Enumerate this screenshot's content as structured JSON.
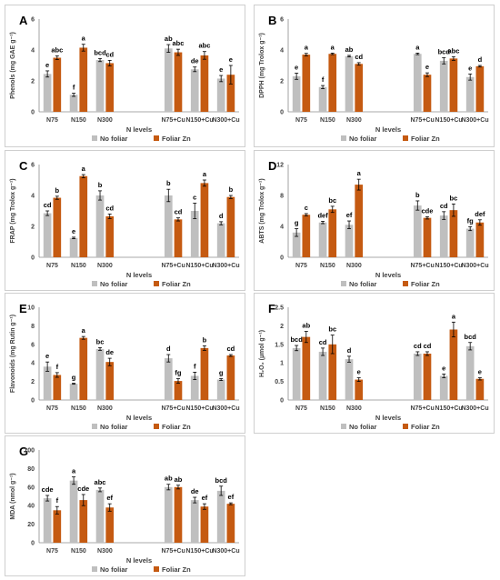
{
  "colors": {
    "no_foliar": "#bfbfbf",
    "foliar_zn": "#c55a11",
    "axis": "#8c8c8c",
    "text": "#404040"
  },
  "chart_data": [
    {
      "type": "bar",
      "panel": "A",
      "ylabel": "Phenols (mg GAE g⁻¹)",
      "xlabel": "N levels",
      "ylim": [
        0,
        6
      ],
      "yticks": [
        0,
        2,
        4,
        6
      ],
      "categories": [
        "N75",
        "N150",
        "N300",
        "N75+Cu",
        "N150+Cu",
        "N300+Cu"
      ],
      "series": [
        {
          "name": "No foliar",
          "values": [
            2.45,
            1.1,
            3.35,
            4.1,
            2.75,
            2.15
          ],
          "errors": [
            0.2,
            0.1,
            0.1,
            0.25,
            0.15,
            0.2
          ],
          "letters": [
            "e",
            "f",
            "bcd",
            "ab",
            "de",
            "e"
          ]
        },
        {
          "name": "Foliar Zn",
          "values": [
            3.5,
            4.15,
            3.15,
            3.85,
            3.65,
            2.4
          ],
          "errors": [
            0.12,
            0.22,
            0.18,
            0.2,
            0.25,
            0.6
          ],
          "letters": [
            "abc",
            "a",
            "cd",
            "abc",
            "abc",
            "e"
          ]
        }
      ],
      "legend": "bottom"
    },
    {
      "type": "bar",
      "panel": "B",
      "ylabel": "DPPH (mg Trolox g⁻¹)",
      "xlabel": "N levels",
      "ylim": [
        0,
        6
      ],
      "yticks": [
        0,
        2,
        4,
        6
      ],
      "categories": [
        "N75",
        "N150",
        "N300",
        "N75+Cu",
        "N150+Cu",
        "N300+Cu"
      ],
      "series": [
        {
          "name": "No foliar",
          "values": [
            2.3,
            1.6,
            3.6,
            3.75,
            3.3,
            2.25
          ],
          "errors": [
            0.2,
            0.1,
            0.05,
            0.05,
            0.2,
            0.2
          ],
          "letters": [
            "e",
            "f",
            "ab",
            "a",
            "bcd",
            "e"
          ]
        },
        {
          "name": "Foliar Zn",
          "values": [
            3.7,
            3.75,
            3.1,
            2.4,
            3.45,
            2.95
          ],
          "errors": [
            0.08,
            0.05,
            0.08,
            0.12,
            0.12,
            0.05
          ],
          "letters": [
            "a",
            "a",
            "cd",
            "e",
            "abc",
            "d"
          ]
        }
      ],
      "legend": "bottom"
    },
    {
      "type": "bar",
      "panel": "C",
      "ylabel": "FRAP (mg Trolox g⁻¹)",
      "xlabel": "N levels",
      "ylim": [
        0,
        6
      ],
      "yticks": [
        0,
        2,
        4,
        6
      ],
      "categories": [
        "N75",
        "N150",
        "N300",
        "N75+Cu",
        "N150+Cu",
        "N300+Cu"
      ],
      "series": [
        {
          "name": "No foliar",
          "values": [
            2.85,
            1.25,
            4.0,
            4.0,
            3.0,
            2.2
          ],
          "errors": [
            0.15,
            0.05,
            0.3,
            0.4,
            0.5,
            0.1
          ],
          "letters": [
            "cd",
            "e",
            "b",
            "b",
            "c",
            "d"
          ]
        },
        {
          "name": "Foliar Zn",
          "values": [
            3.85,
            5.25,
            2.65,
            2.45,
            4.8,
            3.9
          ],
          "errors": [
            0.1,
            0.1,
            0.15,
            0.1,
            0.2,
            0.1
          ],
          "letters": [
            "b",
            "a",
            "cd",
            "cd",
            "a",
            "b"
          ]
        }
      ],
      "legend": "bottom"
    },
    {
      "type": "bar",
      "panel": "D",
      "ylabel": "ABTS (mg Trolox g⁻¹)",
      "xlabel": "N levels",
      "ylim": [
        0,
        12
      ],
      "yticks": [
        0,
        4,
        8,
        12
      ],
      "categories": [
        "N75",
        "N150",
        "N300",
        "N75+Cu",
        "N150+Cu",
        "N300+Cu"
      ],
      "series": [
        {
          "name": "No foliar",
          "values": [
            3.2,
            4.5,
            4.2,
            6.7,
            5.4,
            3.7
          ],
          "errors": [
            0.5,
            0.15,
            0.5,
            0.6,
            0.5,
            0.25
          ],
          "letters": [
            "g",
            "def",
            "ef",
            "b",
            "cd",
            "fg"
          ]
        },
        {
          "name": "Foliar Zn",
          "values": [
            5.5,
            6.2,
            9.4,
            5.1,
            6.1,
            4.5
          ],
          "errors": [
            0.15,
            0.4,
            0.7,
            0.15,
            0.8,
            0.35
          ],
          "letters": [
            "c",
            "bc",
            "a",
            "cde",
            "bc",
            "def"
          ]
        }
      ],
      "legend": "bottom"
    },
    {
      "type": "bar",
      "panel": "E",
      "ylabel": "Flavonoids (mg Rutin g⁻¹)",
      "xlabel": "N levels",
      "ylim": [
        0,
        10
      ],
      "yticks": [
        0,
        2,
        4,
        6,
        8,
        10
      ],
      "categories": [
        "N75",
        "N150",
        "N300",
        "N75+Cu",
        "N150+Cu",
        "N300+Cu"
      ],
      "series": [
        {
          "name": "No foliar",
          "values": [
            3.6,
            1.75,
            5.5,
            4.5,
            2.6,
            2.2
          ],
          "errors": [
            0.5,
            0.05,
            0.15,
            0.4,
            0.4,
            0.1
          ],
          "letters": [
            "e",
            "g",
            "bc",
            "d",
            "f",
            "g"
          ]
        },
        {
          "name": "Foliar Zn",
          "values": [
            2.7,
            6.7,
            4.1,
            2.05,
            5.6,
            4.8
          ],
          "errors": [
            0.25,
            0.15,
            0.4,
            0.25,
            0.25,
            0.1
          ],
          "letters": [
            "f",
            "a",
            "de",
            "fg",
            "b",
            "cd"
          ]
        }
      ],
      "legend": "bottom"
    },
    {
      "type": "bar",
      "panel": "F",
      "ylabel": "H₂O₂ (µmol g⁻¹)",
      "xlabel": "N levels",
      "ylim": [
        0,
        2.5
      ],
      "yticks": [
        0,
        0.5,
        1,
        1.5,
        2,
        2.5
      ],
      "categories": [
        "N75",
        "N150",
        "N300",
        "N75+Cu",
        "N150+Cu",
        "N300+Cu"
      ],
      "series": [
        {
          "name": "No foliar",
          "values": [
            1.4,
            1.3,
            1.1,
            1.25,
            0.65,
            1.45
          ],
          "errors": [
            0.07,
            0.1,
            0.08,
            0.05,
            0.05,
            0.1
          ],
          "letters": [
            "bcd",
            "cd",
            "d",
            "cd",
            "e",
            "bcd"
          ]
        },
        {
          "name": "Foliar Zn",
          "values": [
            1.7,
            1.5,
            0.55,
            1.25,
            1.9,
            0.57
          ],
          "errors": [
            0.15,
            0.25,
            0.05,
            0.05,
            0.2,
            0.03
          ],
          "letters": [
            "ab",
            "bc",
            "e",
            "cd",
            "a",
            "e"
          ]
        }
      ],
      "legend": "bottom"
    },
    {
      "type": "bar",
      "panel": "G",
      "ylabel": "MDA (nmol g⁻¹)",
      "xlabel": "N levels",
      "ylim": [
        0,
        100
      ],
      "yticks": [
        0,
        20,
        40,
        60,
        80,
        100
      ],
      "categories": [
        "N75",
        "N150",
        "N300",
        "N75+Cu",
        "N150+Cu",
        "N300+Cu"
      ],
      "series": [
        {
          "name": "No foliar",
          "values": [
            48,
            67,
            57,
            60,
            46,
            56
          ],
          "errors": [
            3,
            4,
            2,
            3,
            3,
            5
          ],
          "letters": [
            "cde",
            "a",
            "abc",
            "ab",
            "de",
            "bcd"
          ]
        },
        {
          "name": "Foliar Zn",
          "values": [
            35,
            46,
            38,
            60,
            39,
            42
          ],
          "errors": [
            4,
            6,
            4,
            2,
            3,
            1
          ],
          "letters": [
            "f",
            "cde",
            "ef",
            "ab",
            "ef",
            "ef"
          ]
        }
      ],
      "legend": "bottom"
    }
  ]
}
